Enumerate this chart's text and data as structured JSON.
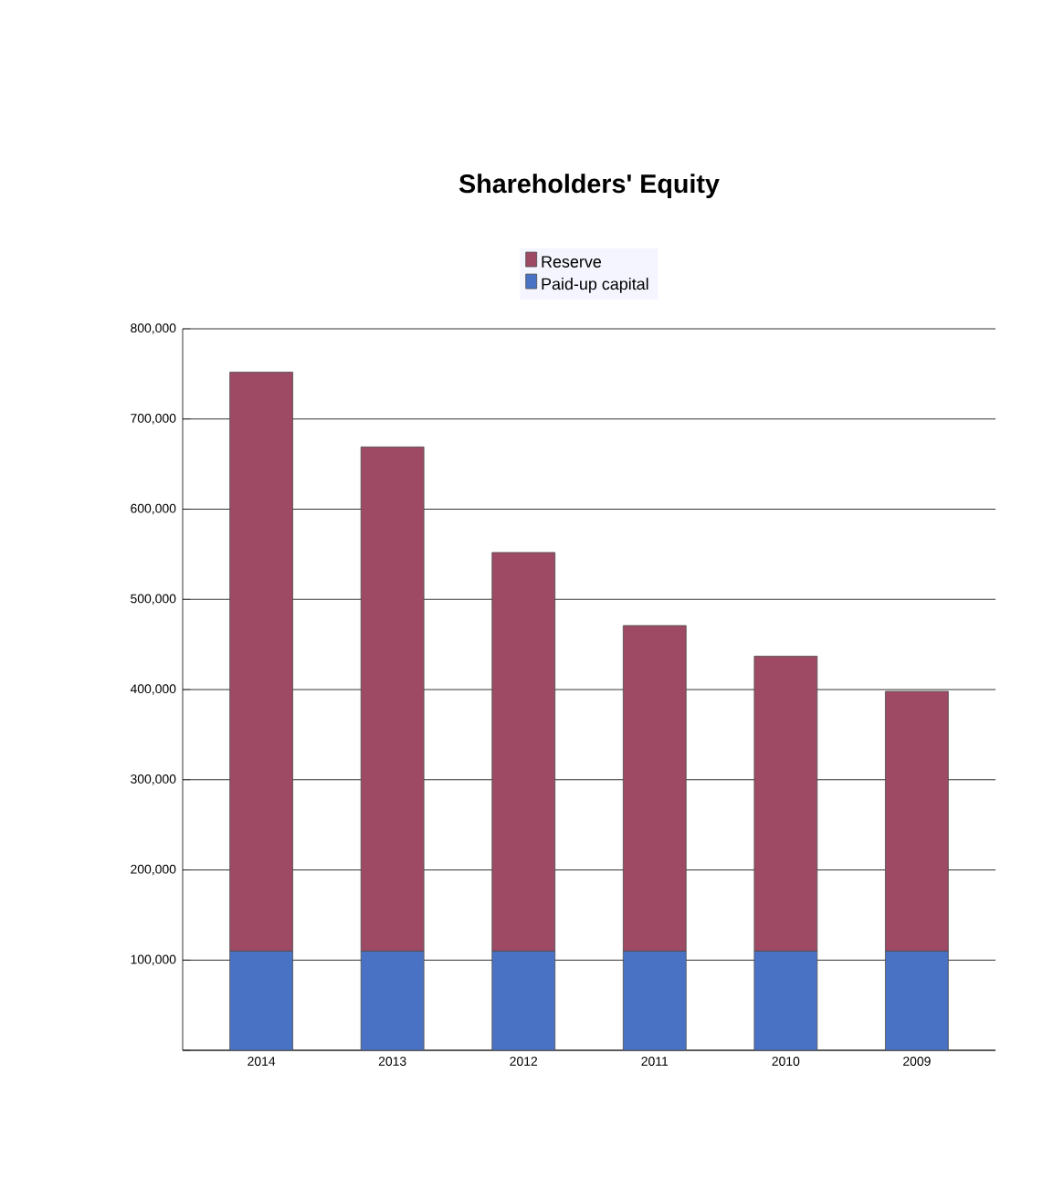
{
  "chart_data": {
    "type": "bar",
    "title": "Shareholders' Equity",
    "stacked": true,
    "categories": [
      "2014",
      "2013",
      "2012",
      "2011",
      "2010",
      "2009"
    ],
    "series": [
      {
        "name": "Paid-up capital",
        "color": "#4a72c4",
        "values": [
          110000,
          110000,
          110000,
          110000,
          110000,
          110000
        ]
      },
      {
        "name": "Reserve",
        "color": "#9e4a64",
        "values": [
          642000,
          559000,
          442000,
          361000,
          327000,
          288000
        ]
      }
    ],
    "ylim": [
      0,
      800000
    ],
    "yticks": [
      {
        "value": 0,
        "label": null
      },
      {
        "value": 100000,
        "label": "100,000"
      },
      {
        "value": 200000,
        "label": "200,000"
      },
      {
        "value": 300000,
        "label": "300,000"
      },
      {
        "value": 400000,
        "label": "400,000"
      },
      {
        "value": 500000,
        "label": "500,000"
      },
      {
        "value": 600000,
        "label": "600,000"
      },
      {
        "value": 700000,
        "label": "700,000"
      },
      {
        "value": 800000,
        "label": "800,000"
      }
    ],
    "grid": "y",
    "legend": "top"
  }
}
